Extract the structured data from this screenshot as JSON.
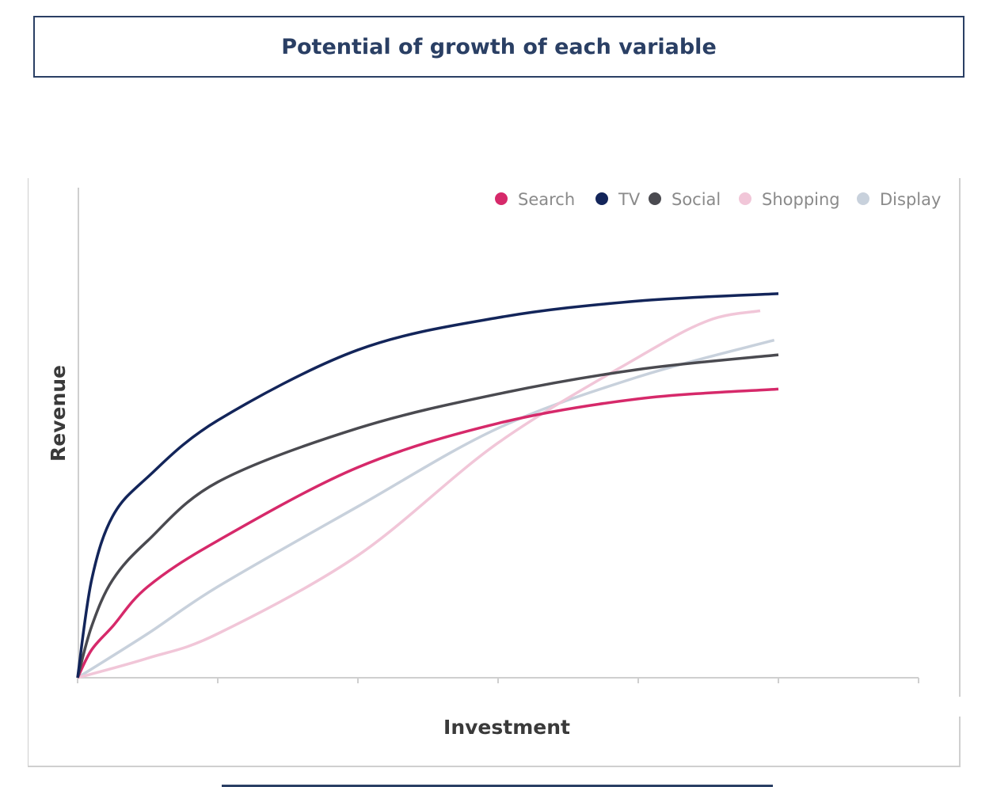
{
  "header": {
    "title": "Potential of growth of each variable"
  },
  "chart_data": {
    "type": "line",
    "title": "Potential of growth of each variable",
    "xlabel": "Investment",
    "ylabel": "Revenue",
    "xlim": [
      0,
      6
    ],
    "ylim": [
      0,
      100
    ],
    "x_ticks_count": 7,
    "tick_labels_shown": false,
    "grid": false,
    "legend_position": "top-right",
    "series": [
      {
        "name": "Search",
        "color": "#d6296a",
        "x": [
          0,
          0.1,
          0.25,
          0.5,
          1,
          2,
          3,
          4,
          5
        ],
        "y": [
          0,
          5.7,
          10.5,
          18.6,
          28,
          43,
          52,
          57,
          59
        ]
      },
      {
        "name": "TV",
        "color": "#13255a",
        "x": [
          0,
          0.1,
          0.25,
          0.5,
          1,
          2,
          3,
          4,
          5
        ],
        "y": [
          0,
          20,
          33,
          41,
          52.6,
          67,
          73.6,
          77,
          78.5
        ]
      },
      {
        "name": "Social",
        "color": "#4a4a50",
        "x": [
          0,
          0.1,
          0.25,
          0.5,
          1,
          2,
          3,
          4,
          5
        ],
        "y": [
          0,
          10.5,
          20,
          28,
          40,
          51,
          58,
          63,
          66
        ]
      },
      {
        "name": "Shopping",
        "color": "#f1c6d8",
        "x": [
          0,
          0.5,
          1,
          2,
          3,
          4,
          4.5,
          4.87
        ],
        "y": [
          0,
          4,
          9,
          25,
          48,
          65.5,
          73,
          75
        ]
      },
      {
        "name": "Display",
        "color": "#c8d1dc",
        "x": [
          0,
          0.5,
          1,
          2,
          3,
          4,
          4.97
        ],
        "y": [
          0,
          9,
          18.6,
          35,
          51,
          61.5,
          69
        ]
      }
    ]
  }
}
